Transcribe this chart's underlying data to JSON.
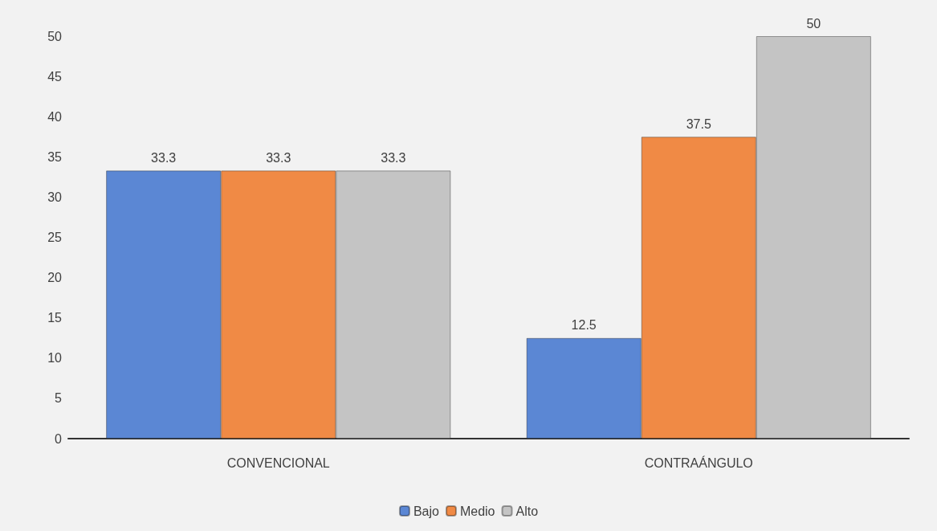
{
  "chart_data": {
    "type": "bar",
    "categories": [
      "CONVENCIONAL",
      "CONTRAÁNGULO"
    ],
    "series": [
      {
        "name": "Bajo",
        "color": "#5b87d4",
        "values": [
          33.3,
          12.5
        ]
      },
      {
        "name": "Medio",
        "color": "#f08a45",
        "values": [
          33.3,
          37.5
        ]
      },
      {
        "name": "Alto",
        "color": "#c4c4c4",
        "values": [
          33.3,
          50
        ]
      }
    ],
    "ylim": [
      0,
      50
    ],
    "yticks": [
      0,
      5,
      10,
      15,
      20,
      25,
      30,
      35,
      40,
      45,
      50
    ],
    "grid": false,
    "legend": "bottom",
    "data_labels": true
  }
}
